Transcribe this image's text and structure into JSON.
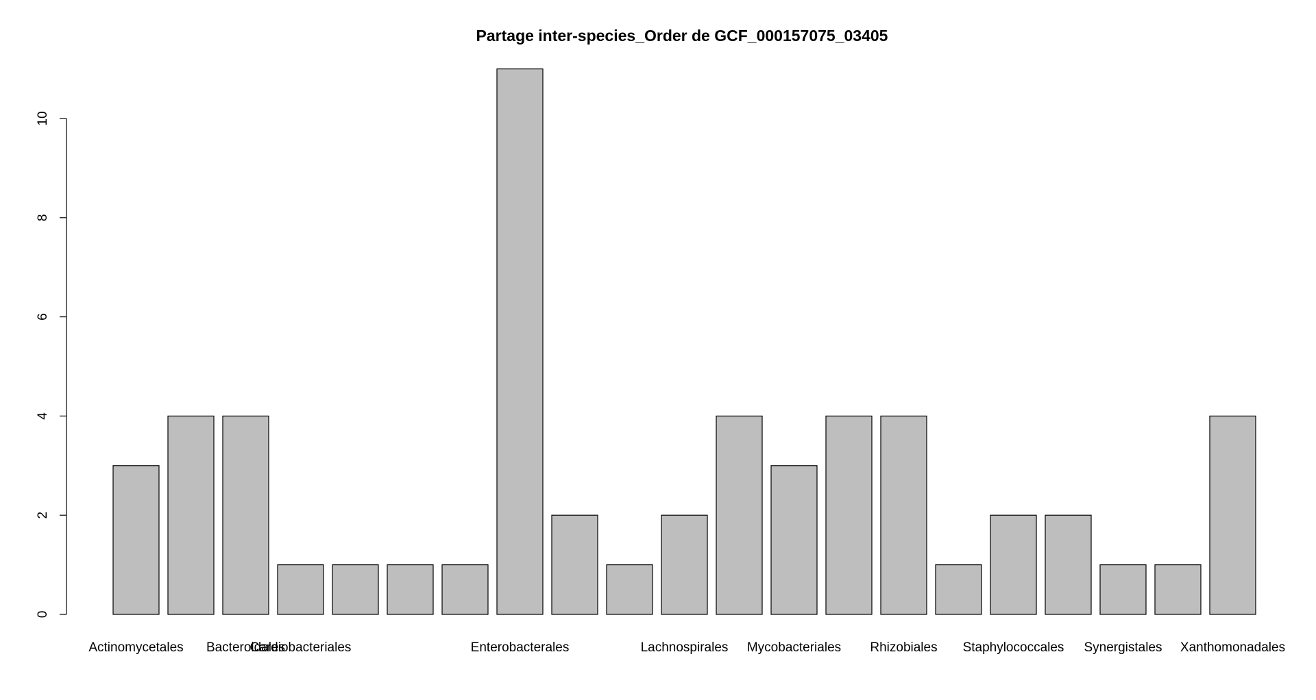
{
  "chart_data": {
    "type": "bar",
    "title": "Partage inter-species_Order de GCF_000157075_03405",
    "xlabel": "",
    "ylabel": "",
    "categories": [
      "Actinomycetales",
      "",
      "Bacteroidales",
      "Cardiobacteriales",
      "",
      "",
      "",
      "Enterobacterales",
      "",
      "",
      "Lachnospirales",
      "",
      "Mycobacteriales",
      "",
      "Rhizobiales",
      "",
      "Staphylococcales",
      "",
      "Synergistales",
      "",
      "Xanthomonadales"
    ],
    "values": [
      3,
      4,
      4,
      1,
      1,
      1,
      1,
      11,
      2,
      1,
      2,
      4,
      3,
      4,
      4,
      1,
      2,
      2,
      1,
      1,
      4
    ],
    "ylim": [
      0,
      11
    ],
    "yticks": [
      0,
      2,
      4,
      6,
      8,
      10
    ],
    "grid": false,
    "legend": "none",
    "colors": {
      "bar_fill": "#bebebe",
      "bar_stroke": "#000000",
      "axis": "#000000",
      "background": "#ffffff"
    }
  }
}
